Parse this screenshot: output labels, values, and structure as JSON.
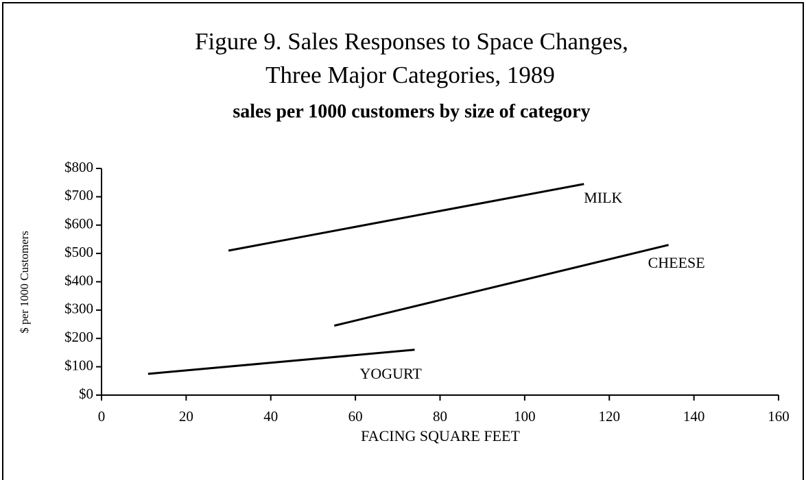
{
  "chart_data": {
    "type": "line",
    "title": [
      "Figure 9.  Sales Responses to Space Changes,",
      "Three Major Categories, 1989"
    ],
    "subtitle": "sales per 1000 customers by size of category",
    "xlabel": "FACING SQUARE FEET",
    "ylabel": "$ per 1000 Customers",
    "series": [
      {
        "name": "MILK",
        "color": "#000000",
        "x": [
          30,
          114
        ],
        "values": [
          510,
          745
        ]
      },
      {
        "name": "CHEESE",
        "color": "#000000",
        "x": [
          55,
          134
        ],
        "values": [
          245,
          530
        ]
      },
      {
        "name": "YOGURT",
        "color": "#000000",
        "x": [
          11,
          74
        ],
        "values": [
          75,
          160
        ]
      }
    ],
    "xlim": [
      0,
      160
    ],
    "xticks": [
      0,
      20,
      40,
      60,
      80,
      100,
      120,
      140,
      160
    ],
    "ylim": [
      0,
      800
    ],
    "yticks": [
      {
        "value": 0,
        "label": "$0"
      },
      {
        "value": 100,
        "label": "$100"
      },
      {
        "value": 200,
        "label": "$200"
      },
      {
        "value": 300,
        "label": "$300"
      },
      {
        "value": 400,
        "label": "$400"
      },
      {
        "value": 500,
        "label": "$500"
      },
      {
        "value": 600,
        "label": "$600"
      },
      {
        "value": 700,
        "label": "$700"
      },
      {
        "value": 800,
        "label": "$800"
      }
    ]
  }
}
